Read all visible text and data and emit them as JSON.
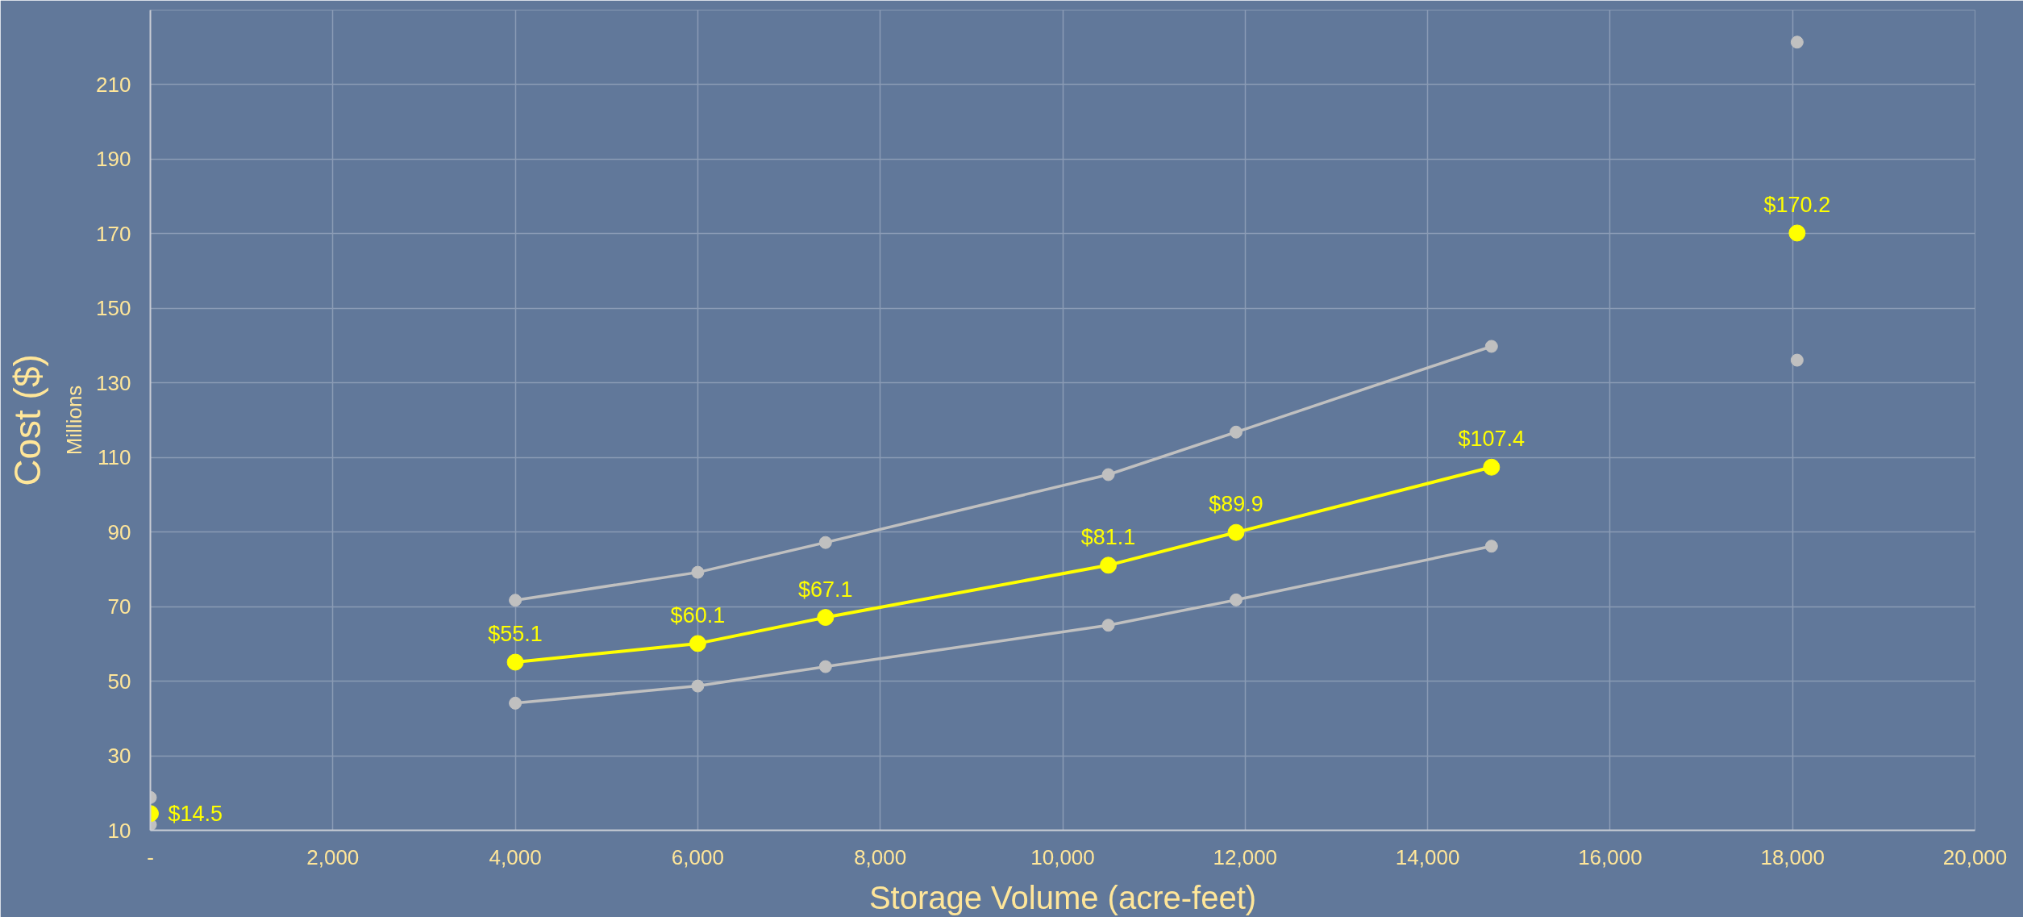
{
  "chart_data": {
    "type": "line",
    "xlabel": "Storage Volume (acre-feet)",
    "ylabel": "Cost ($)",
    "annotations": [
      "Millions"
    ],
    "xlim": [
      0,
      20000
    ],
    "ylim": [
      10,
      230
    ],
    "xticks": [
      {
        "value": 0,
        "label": "-"
      },
      {
        "value": 2000,
        "label": "2,000"
      },
      {
        "value": 4000,
        "label": "4,000"
      },
      {
        "value": 6000,
        "label": "6,000"
      },
      {
        "value": 8000,
        "label": "8,000"
      },
      {
        "value": 10000,
        "label": "10,000"
      },
      {
        "value": 12000,
        "label": "12,000"
      },
      {
        "value": 14000,
        "label": "14,000"
      },
      {
        "value": 16000,
        "label": "16,000"
      },
      {
        "value": 18000,
        "label": "18,000"
      },
      {
        "value": 20000,
        "label": "20,000"
      }
    ],
    "yticks": [
      10,
      30,
      50,
      70,
      90,
      110,
      130,
      150,
      170,
      190,
      210
    ],
    "grid": true,
    "marker": "circle",
    "line_style": "solid",
    "series": [
      {
        "color": "#c0c0c0",
        "x": [
          4000,
          6000,
          7400,
          10500,
          11900,
          14700
        ],
        "values": [
          71.7,
          79.2,
          87.2,
          105.4,
          116.8,
          139.8
        ]
      },
      {
        "color": "#c0c0c0",
        "x": [
          4000,
          6000,
          7400,
          10500,
          11900,
          14700
        ],
        "values": [
          44.1,
          48.7,
          53.9,
          65.0,
          71.8,
          86.2
        ]
      },
      {
        "type": "scatter",
        "color": "#c0c0c0",
        "x": [
          0,
          0,
          18050,
          18050
        ],
        "values": [
          18.8,
          11.5,
          221.4,
          136.1
        ]
      },
      {
        "color": "#ffff00",
        "x": [
          4000,
          6000,
          7400,
          10500,
          11900,
          14700
        ],
        "values": [
          55.1,
          60.1,
          67.1,
          81.1,
          89.9,
          107.4
        ],
        "value_labels": [
          "$55.1",
          "$60.1",
          "$67.1",
          "$81.1",
          "$89.9",
          "$107.4"
        ]
      },
      {
        "type": "scatter",
        "color": "#ffff00",
        "x": [
          0,
          18050
        ],
        "values": [
          14.5,
          170.2
        ],
        "value_labels": [
          "$14.5",
          "$170.2"
        ]
      }
    ]
  }
}
